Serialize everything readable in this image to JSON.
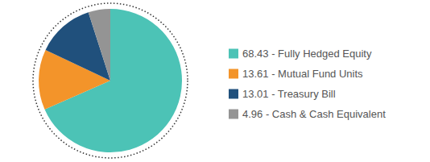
{
  "chart_data": {
    "type": "pie",
    "categories": [
      "68.43 - Fully Hedged Equity",
      "13.61 - Mutual Fund Units",
      "13.01 - Treasury Bill",
      "4.96 - Cash & Cash Equivalent"
    ],
    "values": [
      68.43,
      13.61,
      13.01,
      4.96
    ],
    "colors": [
      "#4cc3b6",
      "#f3942a",
      "#20507c",
      "#949494"
    ],
    "legend": "right"
  }
}
